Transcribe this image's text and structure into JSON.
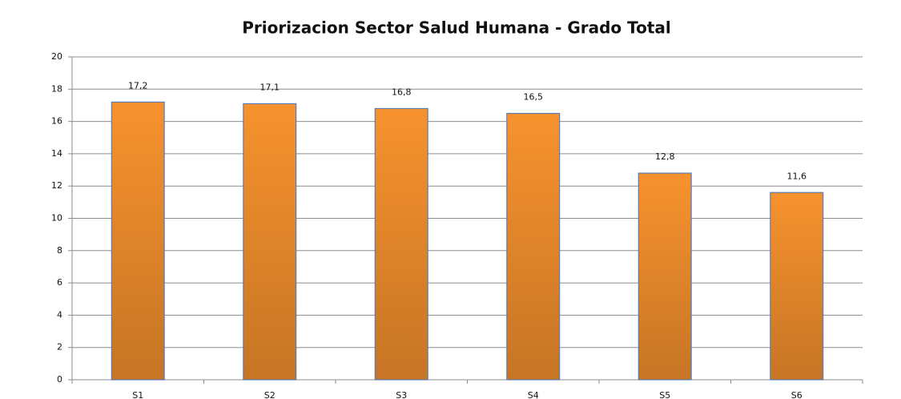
{
  "chart_data": {
    "type": "bar",
    "title": "Priorizacion Sector Salud Humana - Grado Total",
    "categories": [
      "S1",
      "S2",
      "S3",
      "S4",
      "S5",
      "S6"
    ],
    "values": [
      17.2,
      17.1,
      16.8,
      16.5,
      12.8,
      11.6
    ],
    "value_labels": [
      "17,2",
      "17,1",
      "16,8",
      "16,5",
      "12,8",
      "11,6"
    ],
    "color": "#f7922e",
    "ylim": [
      0,
      20
    ],
    "yticks": [
      0,
      2,
      4,
      6,
      8,
      10,
      12,
      14,
      16,
      18,
      20
    ],
    "grid": true
  }
}
